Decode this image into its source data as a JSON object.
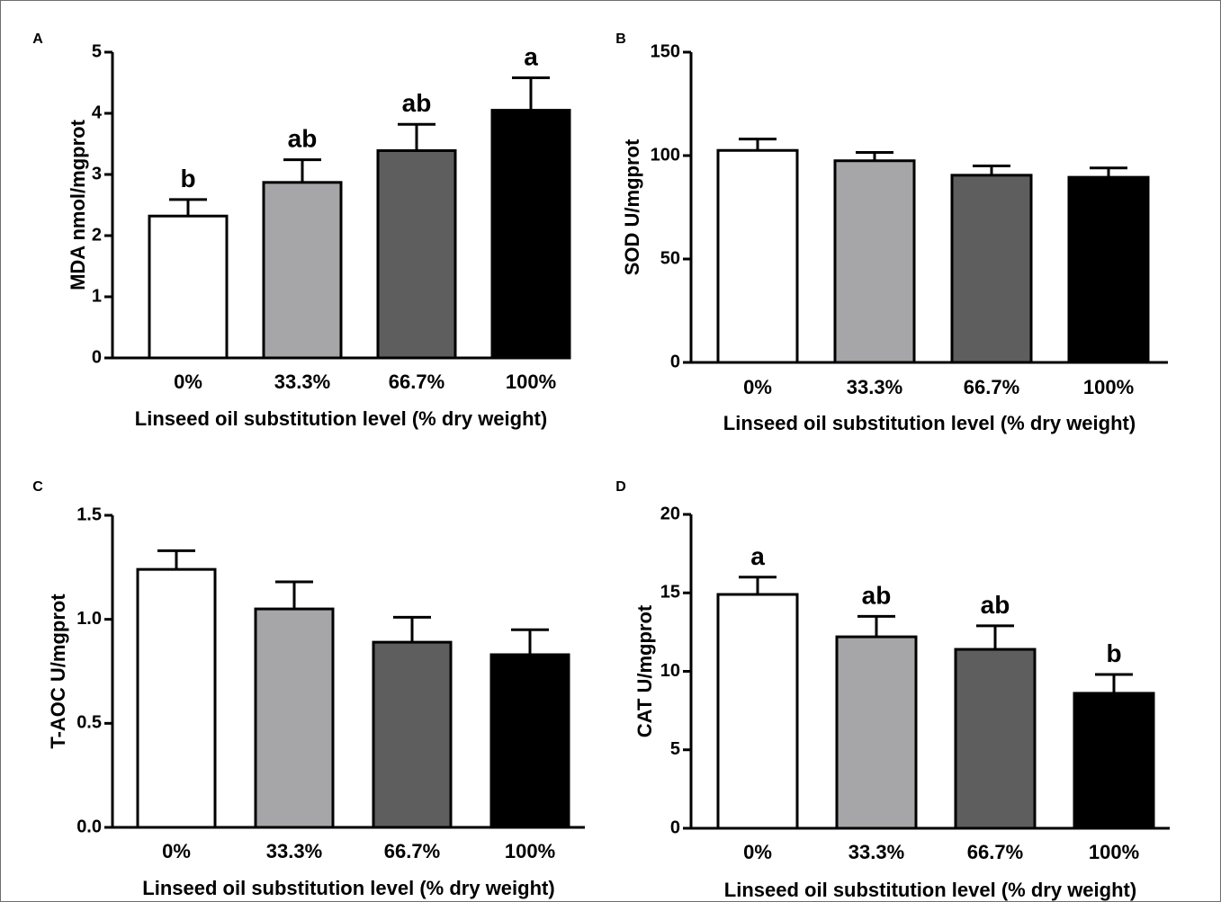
{
  "chart_data": [
    {
      "panel": "A",
      "type": "bar",
      "categories": [
        "0%",
        "33.3%",
        "66.7%",
        "100%"
      ],
      "values": [
        2.32,
        2.87,
        3.39,
        4.05
      ],
      "errors": [
        0.27,
        0.37,
        0.43,
        0.53
      ],
      "significance": [
        "b",
        "ab",
        "ab",
        "a"
      ],
      "bar_colors": [
        "#ffffff",
        "#a6a6a8",
        "#5e5e5e",
        "#000000"
      ],
      "ylabel": "MDA nmol/mgprot",
      "xlabel": "Linseed oil substitution level (% dry weight)",
      "ylim": [
        0,
        5
      ],
      "yticks": [
        0,
        1,
        2,
        3,
        4,
        5
      ],
      "ytick_labels": [
        "0",
        "1",
        "2",
        "3",
        "4",
        "5"
      ]
    },
    {
      "panel": "B",
      "type": "bar",
      "categories": [
        "0%",
        "33.3%",
        "66.7%",
        "100%"
      ],
      "values": [
        102.5,
        97.5,
        90.5,
        89.5
      ],
      "errors": [
        5.5,
        4.0,
        4.5,
        4.5
      ],
      "significance": [
        "",
        "",
        "",
        ""
      ],
      "bar_colors": [
        "#ffffff",
        "#a6a6a8",
        "#5e5e5e",
        "#000000"
      ],
      "ylabel": "SOD U/mgprot",
      "xlabel": "Linseed oil substitution level (% dry weight)",
      "ylim": [
        0,
        150
      ],
      "yticks": [
        0,
        50,
        100,
        150
      ],
      "ytick_labels": [
        "0",
        "50",
        "100",
        "150"
      ]
    },
    {
      "panel": "C",
      "type": "bar",
      "categories": [
        "0%",
        "33.3%",
        "66.7%",
        "100%"
      ],
      "values": [
        1.24,
        1.05,
        0.89,
        0.83
      ],
      "errors": [
        0.09,
        0.13,
        0.12,
        0.12
      ],
      "significance": [
        "",
        "",
        "",
        ""
      ],
      "bar_colors": [
        "#ffffff",
        "#a6a6a8",
        "#5e5e5e",
        "#000000"
      ],
      "ylabel": "T-AOC U/mgprot",
      "xlabel": "Linseed oil substitution level (% dry weight)",
      "ylim": [
        0,
        1.5
      ],
      "yticks": [
        0,
        0.5,
        1.0,
        1.5
      ],
      "ytick_labels": [
        "0.0",
        "0.5",
        "1.0",
        "1.5"
      ]
    },
    {
      "panel": "D",
      "type": "bar",
      "categories": [
        "0%",
        "33.3%",
        "66.7%",
        "100%"
      ],
      "values": [
        14.9,
        12.2,
        11.4,
        8.6
      ],
      "errors": [
        1.1,
        1.3,
        1.5,
        1.2
      ],
      "significance": [
        "a",
        "ab",
        "ab",
        "b"
      ],
      "bar_colors": [
        "#ffffff",
        "#a6a6a8",
        "#5e5e5e",
        "#000000"
      ],
      "ylabel": "CAT U/mgprot",
      "xlabel": "Linseed oil substitution level (% dry weight)",
      "ylim": [
        0,
        20
      ],
      "yticks": [
        0,
        5,
        10,
        15,
        20
      ],
      "ytick_labels": [
        "0",
        "5",
        "10",
        "15",
        "20"
      ]
    }
  ]
}
